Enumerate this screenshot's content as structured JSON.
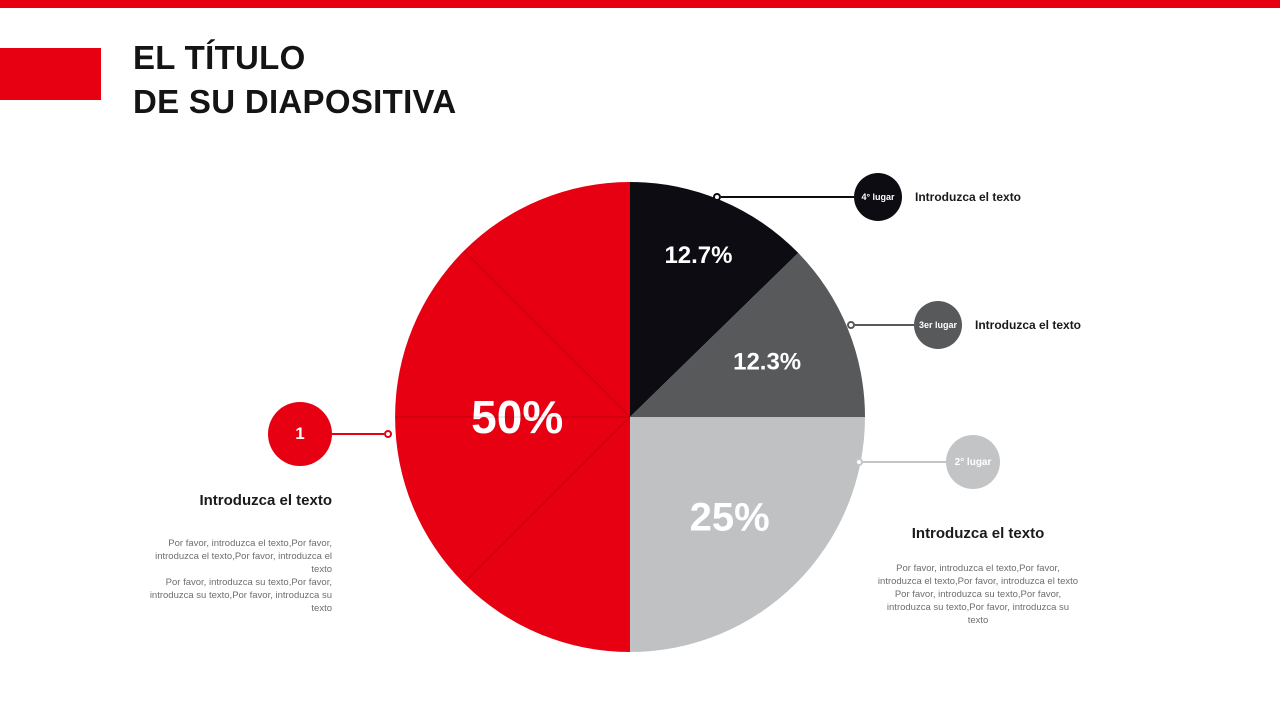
{
  "header": {
    "title_line1": "EL TÍTULO",
    "title_line2": "DE SU DIAPOSITIVA",
    "accent_color": "#e60012"
  },
  "chart_data": {
    "type": "pie",
    "title": "",
    "start_angle_deg": 0,
    "direction": "clockwise",
    "legend": "none",
    "slices": [
      {
        "name": "4-lugar",
        "legend_label": "4° lugar",
        "value": 12.7,
        "display": "12.7%",
        "color": "#0c0c12",
        "label_radius": 0.75,
        "label_size": 24
      },
      {
        "name": "3er-lugar",
        "legend_label": "3er lugar",
        "value": 12.3,
        "display": "12.3%",
        "color": "#58595b",
        "label_radius": 0.63,
        "label_size": 24
      },
      {
        "name": "2-lugar",
        "legend_label": "2° lugar",
        "value": 25,
        "display": "25%",
        "color": "#bfc1c3",
        "label_radius": 0.6,
        "label_size": 40
      },
      {
        "name": "1",
        "legend_label": "1",
        "value": 50,
        "display": "50%",
        "color": "#e60012",
        "label_radius": 0.48,
        "label_size": 46
      }
    ]
  },
  "callouts": [
    {
      "badge": "4° lugar",
      "label": "Introduzca el texto",
      "color": "#0c0c12"
    },
    {
      "badge": "3er lugar",
      "label": "Introduzca el texto",
      "color": "#58595b"
    },
    {
      "badge": "2° lugar",
      "title": "Introduzca el texto",
      "body": "Por favor, introduzca el texto,Por favor, introduzca el texto,Por favor, introduzca el texto\nPor favor, introduzca su texto,Por favor, introduzca su texto,Por favor, introduzca su texto",
      "color": "#bfc1c3"
    },
    {
      "badge": "1",
      "title": "Introduzca el texto",
      "body": "Por favor, introduzca el texto,Por favor, introduzca el texto,Por favor, introduzca el texto\nPor favor, introduzca su texto,Por favor, introduzca su texto,Por favor, introduzca su texto",
      "color": "#e60012"
    }
  ]
}
